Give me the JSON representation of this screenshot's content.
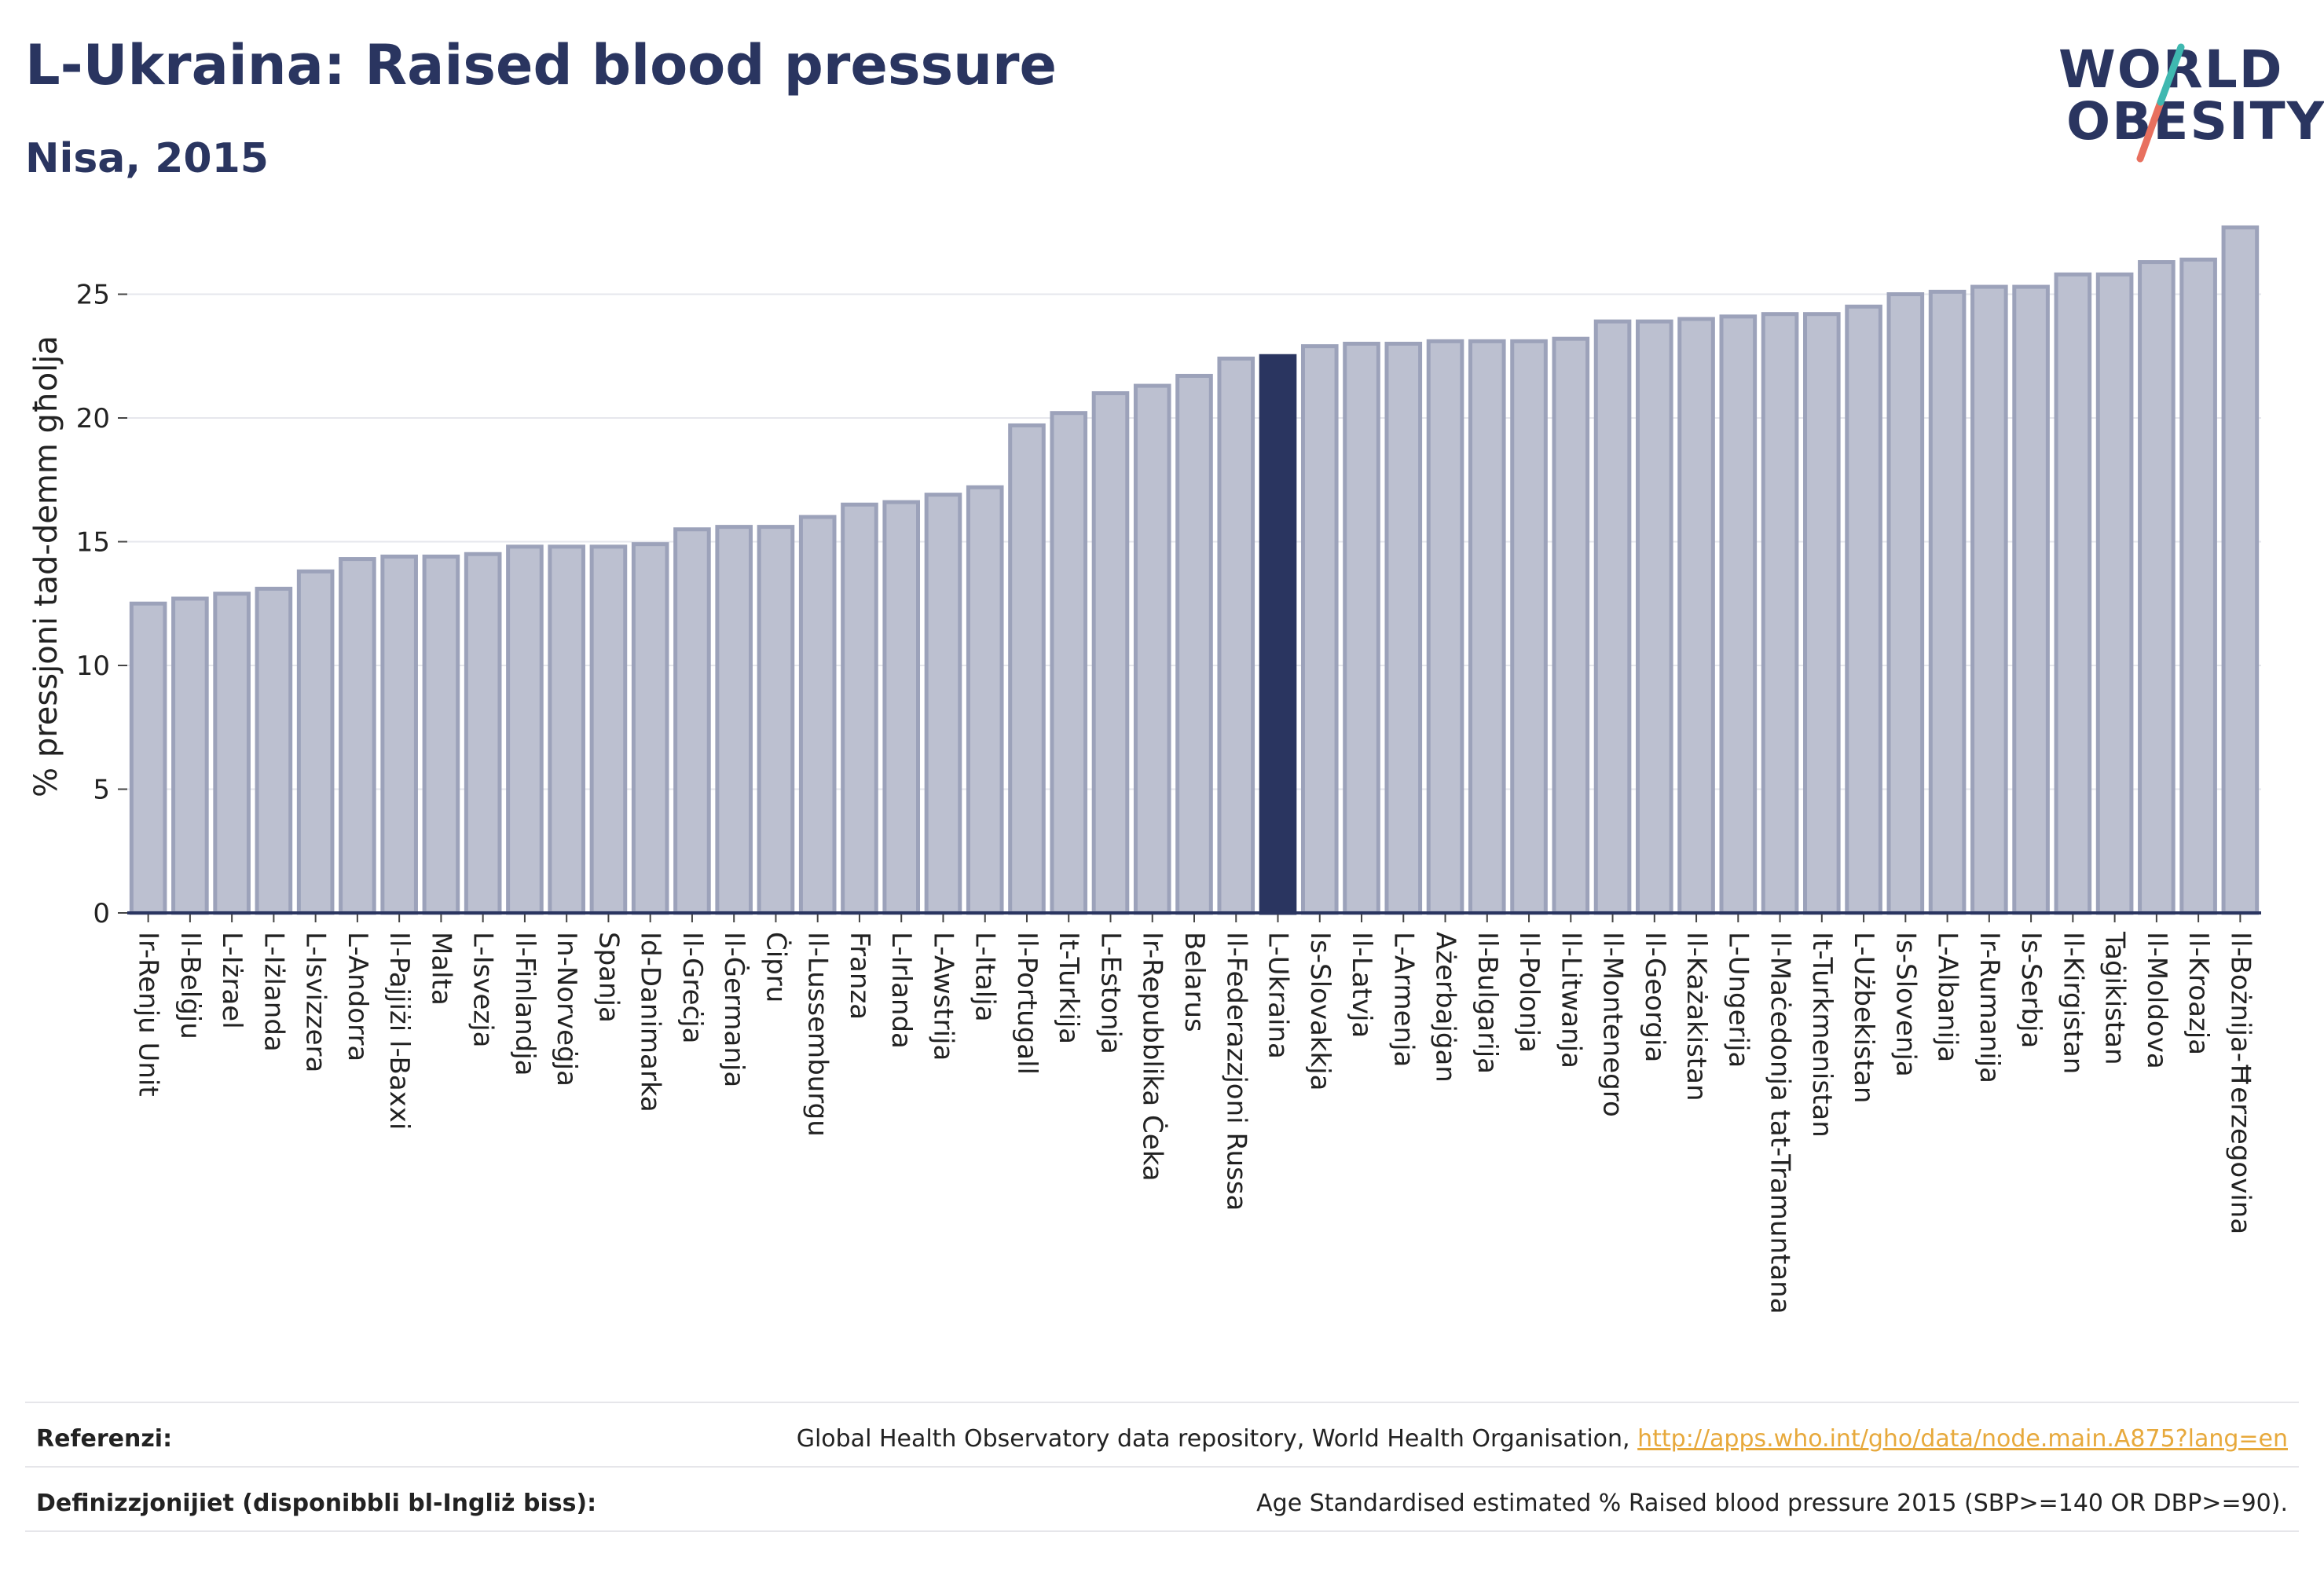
{
  "header": {
    "title": "L-Ukraina: Raised blood pressure",
    "subtitle": "Nisa, 2015"
  },
  "logo": {
    "line1": "WORLD",
    "line2": "OBESITY",
    "slash_colors": [
      "#e8705f",
      "#3fb8b0"
    ]
  },
  "colors": {
    "bar": "#bcc0d0",
    "bar_stroke": "#9ca2ba",
    "highlight": "#2a3560",
    "text": "#2a3560",
    "link": "#e7a93c"
  },
  "chart_data": {
    "type": "bar",
    "ylabel": "% pressjoni tad-demm għolja",
    "ylim": [
      0,
      28
    ],
    "yticks": [
      0,
      5,
      10,
      15,
      20,
      25
    ],
    "grid": true,
    "legend": "none",
    "highlight": "L-Ukraina",
    "categories": [
      "Ir-Renju Unit",
      "Il-Belġju",
      "L-Iżrael",
      "L-Iżlanda",
      "L-Isvizzera",
      "L-Andorra",
      "Il-Pajjiżi l-Baxxi",
      "Malta",
      "L-Isvezja",
      "Il-Finlandja",
      "In-Norveġja",
      "Spanja",
      "Id-Danimarka",
      "Il-Greċja",
      "Il-Ġermanja",
      "Ċipru",
      "Il-Lussemburgu",
      "Franza",
      "L-Irlanda",
      "L-Awstrija",
      "L-Italja",
      "Il-Portugall",
      "It-Turkija",
      "L-Estonja",
      "Ir-Repubblika Ċeka",
      "Belarus",
      "Il-Federazzjoni Russa",
      "L-Ukraina",
      "Is-Slovakkja",
      "Il-Latvja",
      "L-Armenja",
      "Ażerbajġan",
      "Il-Bulgarija",
      "Il-Polonja",
      "Il-Litwanja",
      "Il-Montenegro",
      "Il-Georgia",
      "Il-Każakistan",
      "L-Ungerija",
      "Il-Maċedonja tat-Tramuntana",
      "It-Turkmenistan",
      "L-Użbekistan",
      "Is-Slovenja",
      "L-Albanija",
      "Ir-Rumanija",
      "Is-Serbja",
      "Il-Kirgistan",
      "Taġikistan",
      "Il-Moldova",
      "Il-Kroazja",
      "Il-Bożnija-Ħerzegovina"
    ],
    "values": [
      12.5,
      12.7,
      12.9,
      13.1,
      13.8,
      14.3,
      14.4,
      14.4,
      14.5,
      14.8,
      14.8,
      14.8,
      14.9,
      15.5,
      15.6,
      15.6,
      16.0,
      16.5,
      16.6,
      16.9,
      17.2,
      19.7,
      20.2,
      21.0,
      21.3,
      21.7,
      22.4,
      22.5,
      22.9,
      23.0,
      23.0,
      23.1,
      23.1,
      23.1,
      23.2,
      23.9,
      23.9,
      24.0,
      24.1,
      24.2,
      24.2,
      24.5,
      25.0,
      25.1,
      25.3,
      25.3,
      25.8,
      25.8,
      26.3,
      26.4,
      27.7
    ]
  },
  "footer": {
    "references_label": "Referenzi:",
    "references_text": "Global Health Observatory data repository, World Health Organisation,",
    "references_link": "http://apps.who.int/gho/data/node.main.A875?lang=en",
    "definitions_label": "Definizzjonijiet (disponibbli bl-Ingliż biss):",
    "definitions_text": "Age Standardised estimated % Raised blood pressure 2015 (SBP>=140 OR DBP>=90)."
  }
}
